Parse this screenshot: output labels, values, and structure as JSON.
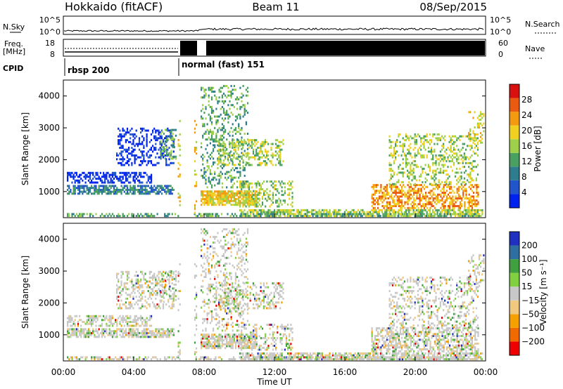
{
  "header": {
    "station": "Hokkaido (fitACF)",
    "beam": "Beam 11",
    "date": "08/Sep/2015"
  },
  "status_panels": {
    "nsky_label": "N.Sky",
    "nsky_ticks": [
      "10^5",
      "10^0"
    ],
    "nsearch_label": "N.Search",
    "nsearch_ticks": [
      "10^5",
      "10^0"
    ],
    "freq_label_1": "Freq.",
    "freq_label_2": "[MHz]",
    "freq_ticks": [
      "18",
      "8"
    ],
    "nave_label": "Nave",
    "nave_ticks": [
      "60",
      "0"
    ],
    "cpid_label": "CPID",
    "cpid_segments": [
      "rbsp 200",
      "normal (fast) 151"
    ]
  },
  "colors": {
    "power": [
      "#0022ee",
      "#2255cc",
      "#2e7d8f",
      "#4aa060",
      "#9fd04a",
      "#f0d020",
      "#f39a10",
      "#ea5a10",
      "#d81010"
    ],
    "velocity": [
      "#ee0000",
      "#f06a00",
      "#f5a000",
      "#f0c880",
      "#c8c8c8",
      "#80d040",
      "#40a040",
      "#2e6ea0",
      "#2030c0"
    ],
    "accent_black": "#000000"
  },
  "chart_data": [
    {
      "type": "heatmap",
      "name": "power",
      "ylabel": "Slant Range [km]",
      "yticks": [
        "1000",
        "2000",
        "3000",
        "4000"
      ],
      "ylim": [
        180,
        4500
      ],
      "xlim": [
        0,
        24
      ],
      "xticks_hours": [
        0,
        4,
        8,
        12,
        16,
        20,
        24
      ],
      "colorbar_label": "Power [dB]",
      "colorbar_ticks": [
        "4",
        "8",
        "12",
        "16",
        "20",
        "24",
        "28"
      ],
      "colorbar_range": [
        0,
        32
      ],
      "data_gap_hours": [
        6.5,
        7.8
      ]
    },
    {
      "type": "heatmap",
      "name": "velocity",
      "ylabel": "Slant Range [km]",
      "yticks": [
        "1000",
        "2000",
        "3000",
        "4000"
      ],
      "ylim": [
        180,
        4500
      ],
      "xlim": [
        0,
        24
      ],
      "xticks": [
        "00:00",
        "04:00",
        "08:00",
        "12:00",
        "16:00",
        "20:00",
        "00:00"
      ],
      "xlabel": "Time UT",
      "colorbar_label": "Velocity [m s⁻¹]",
      "colorbar_ticks": [
        "200",
        "100",
        "50",
        "15",
        "−15",
        "−50",
        "−100",
        "−200"
      ],
      "data_gap_hours": [
        6.5,
        7.8
      ]
    }
  ]
}
